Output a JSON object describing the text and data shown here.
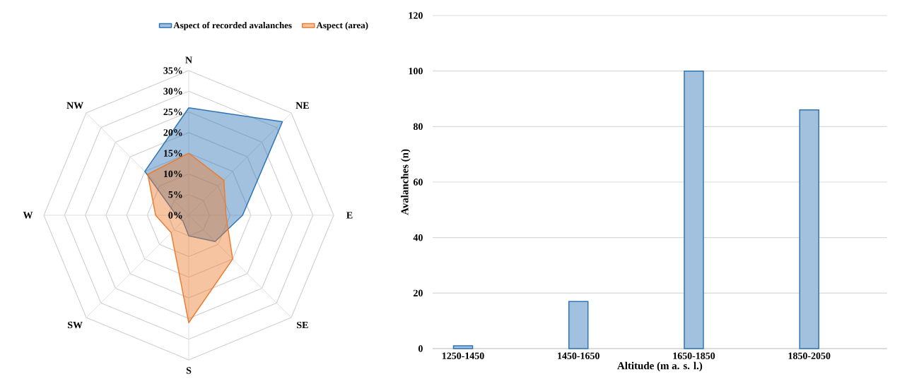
{
  "chart_data": [
    {
      "type": "radar",
      "categories": [
        "N",
        "NE",
        "E",
        "SE",
        "S",
        "SW",
        "W",
        "NW"
      ],
      "series": [
        {
          "name": "Aspect of recorded avalanches",
          "color": "#2e75b6",
          "values": [
            26,
            32,
            13,
            9,
            5,
            2,
            3,
            15
          ]
        },
        {
          "name": "Aspect (area)",
          "color": "#ed7d31",
          "values": [
            15,
            12,
            9,
            15,
            26,
            6,
            8,
            14
          ]
        }
      ],
      "ylim": [
        0,
        35
      ],
      "yticks": [
        {
          "value": 0,
          "label": "0%"
        },
        {
          "value": 5,
          "label": "5%"
        },
        {
          "value": 10,
          "label": "10%"
        },
        {
          "value": 15,
          "label": "15%"
        },
        {
          "value": 20,
          "label": "20%"
        },
        {
          "value": 25,
          "label": "25%"
        },
        {
          "value": 30,
          "label": "30%"
        },
        {
          "value": 35,
          "label": "35%"
        }
      ],
      "grid": true,
      "legend": "top"
    },
    {
      "type": "bar",
      "categories": [
        "1250-1450",
        "1450-1650",
        "1650-1850",
        "1850-2050"
      ],
      "values": [
        1,
        17,
        100,
        86
      ],
      "color": "#2e75b6",
      "xlabel": "Altitude (m a. s. l.)",
      "ylabel": "Avalanches (n)",
      "ylim": [
        0,
        120
      ],
      "yticks": [
        0,
        20,
        40,
        60,
        80,
        100,
        120
      ],
      "grid": "y"
    }
  ]
}
